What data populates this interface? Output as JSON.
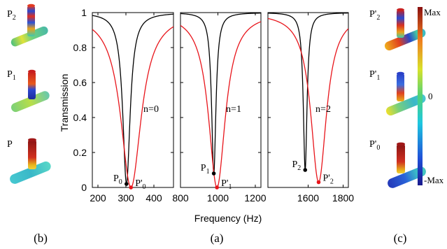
{
  "chart_data": [
    {
      "type": "line",
      "panel": "a-left",
      "ylabel": "Transmission",
      "ylim": [
        0,
        1
      ],
      "xlim": [
        180,
        470
      ],
      "xticks": [
        200,
        300,
        400
      ],
      "yticks": [
        0,
        0.2,
        0.4,
        0.6,
        0.8,
        1
      ],
      "ytick_labels": [
        "0",
        "0.2",
        "0.4",
        "0.6",
        "0.8",
        "1"
      ],
      "annotation": "n=0",
      "series": [
        {
          "color": "#000000",
          "resonance_hz": 302,
          "min_transmission": 0.02,
          "half_width": 16
        },
        {
          "color": "#e8151b",
          "resonance_hz": 318,
          "min_transmission": 0.0,
          "half_width": 45
        }
      ],
      "points": [
        {
          "label": "P",
          "sub": "0",
          "x": 302,
          "y": 0.02,
          "color": "#000000"
        },
        {
          "label": "P'",
          "sub": "0",
          "x": 318,
          "y": 0.0,
          "color": "#e8151b"
        }
      ]
    },
    {
      "type": "line",
      "panel": "a-middle",
      "ylim": [
        0,
        1
      ],
      "xlim": [
        800,
        1230
      ],
      "xticks": [
        800,
        1000,
        1200
      ],
      "annotation": "n=1",
      "series": [
        {
          "color": "#000000",
          "resonance_hz": 978,
          "min_transmission": 0.08,
          "half_width": 14
        },
        {
          "color": "#e8151b",
          "resonance_hz": 995,
          "min_transmission": 0.0,
          "half_width": 55
        }
      ],
      "points": [
        {
          "label": "P",
          "sub": "1",
          "x": 978,
          "y": 0.08,
          "color": "#000000"
        },
        {
          "label": "P'",
          "sub": "1",
          "x": 995,
          "y": 0.0,
          "color": "#e8151b"
        }
      ]
    },
    {
      "type": "line",
      "panel": "a-right",
      "ylim": [
        0,
        1
      ],
      "xlim": [
        1370,
        1830
      ],
      "xticks": [
        1600,
        1800
      ],
      "annotation": "n=2",
      "series": [
        {
          "color": "#000000",
          "resonance_hz": 1583,
          "min_transmission": 0.1,
          "half_width": 13
        },
        {
          "color": "#e8151b",
          "resonance_hz": 1660,
          "min_transmission": 0.03,
          "half_width": 55
        }
      ],
      "points": [
        {
          "label": "P",
          "sub": "2",
          "x": 1583,
          "y": 0.1,
          "color": "#000000"
        },
        {
          "label": "P'",
          "sub": "2",
          "x": 1660,
          "y": 0.03,
          "color": "#e8151b"
        }
      ]
    }
  ],
  "shared": {
    "xlabel": "Frequency (Hz)"
  },
  "panel_labels": {
    "b": "(b)",
    "a": "(a)",
    "c": "(c)"
  },
  "mode_labels_left": [
    {
      "label": "P",
      "sub": "2"
    },
    {
      "label": "P",
      "sub": "1"
    },
    {
      "label": "P",
      "sub": ""
    }
  ],
  "mode_labels_right": [
    {
      "label": "P'",
      "sub": "2"
    },
    {
      "label": "P'",
      "sub": "1"
    },
    {
      "label": "P'",
      "sub": "0"
    }
  ],
  "colorbar": {
    "max_label": "Max",
    "mid_label": "0",
    "min_label": "-Max"
  },
  "colors": {
    "black_curve": "#000000",
    "red_curve": "#e8151b"
  }
}
